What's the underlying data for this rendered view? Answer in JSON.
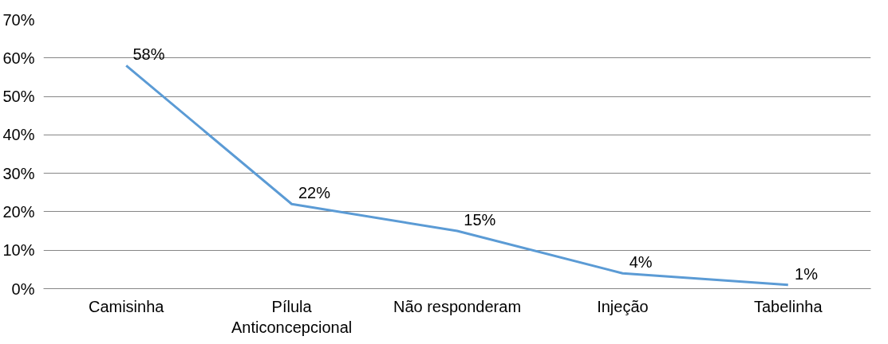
{
  "chart_data": {
    "type": "line",
    "categories": [
      "Camisinha",
      "Pílula Anticoncepcional",
      "Não responderam",
      "Injeção",
      "Tabelinha"
    ],
    "values": [
      58,
      22,
      15,
      4,
      1
    ],
    "value_labels": [
      "58%",
      "22%",
      "15%",
      "4%",
      "1%"
    ],
    "color": "#5b9bd5",
    "ylim": [
      0,
      70
    ],
    "yticks": [
      {
        "value": 0,
        "label": "0%"
      },
      {
        "value": 10,
        "label": "10%"
      },
      {
        "value": 20,
        "label": "20%"
      },
      {
        "value": 30,
        "label": "30%"
      },
      {
        "value": 40,
        "label": "40%"
      },
      {
        "value": 50,
        "label": "50%"
      },
      {
        "value": 60,
        "label": "60%"
      },
      {
        "value": 70,
        "label": "70%"
      }
    ],
    "grid": "y",
    "marker": "none",
    "line_style": "solid"
  }
}
